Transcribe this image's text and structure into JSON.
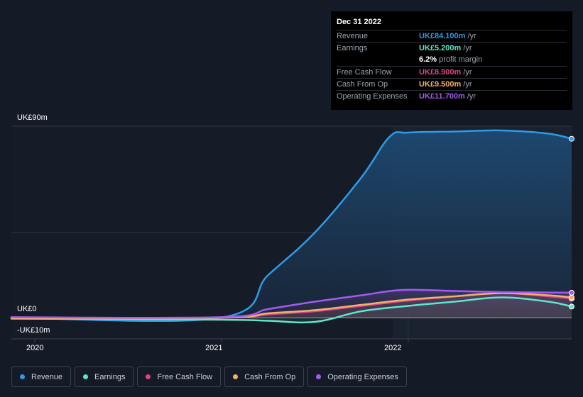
{
  "tooltip": {
    "date": "Dec 31 2022",
    "rows": [
      {
        "label": "Revenue",
        "value": "UK£84.100m",
        "unit": "/yr",
        "color": "#2d9be5"
      },
      {
        "label": "Earnings",
        "value": "UK£5.200m",
        "unit": "/yr",
        "color": "#5ee6c8"
      },
      {
        "label": "",
        "value": "6.2%",
        "unit": "profit margin",
        "color": "#ffffff"
      },
      {
        "label": "Free Cash Flow",
        "value": "UK£8.900m",
        "unit": "/yr",
        "color": "#d9478a"
      },
      {
        "label": "Cash From Op",
        "value": "UK£9.500m",
        "unit": "/yr",
        "color": "#f2b06a"
      },
      {
        "label": "Operating Expenses",
        "value": "UK£11.700m",
        "unit": "/yr",
        "color": "#a55af0"
      }
    ]
  },
  "legend": [
    {
      "label": "Revenue",
      "color": "#2d9be5"
    },
    {
      "label": "Earnings",
      "color": "#5ee6c8"
    },
    {
      "label": "Free Cash Flow",
      "color": "#d9478a"
    },
    {
      "label": "Cash From Op",
      "color": "#f2b06a"
    },
    {
      "label": "Operating Expenses",
      "color": "#a55af0"
    }
  ],
  "chart_data": {
    "type": "area",
    "y_tick_labels": [
      "UK£90m",
      "UK£0",
      "-UK£10m"
    ],
    "x_tick_labels": [
      "2020",
      "2021",
      "2022"
    ],
    "ylim": [
      -10,
      90
    ],
    "xlim": [
      2019.875,
      2022.875
    ],
    "series": [
      {
        "name": "Revenue",
        "color": "#2d9be5",
        "x": [
          2019.875,
          2021.0,
          2021.25,
          2021.5,
          2021.75,
          2021.9,
          2022.0,
          2022.25,
          2022.5,
          2022.75,
          2022.875
        ],
        "y": [
          0,
          0,
          20,
          40,
          66,
          85,
          87,
          87.5,
          88,
          86.5,
          84.1
        ]
      },
      {
        "name": "Earnings",
        "color": "#5ee6c8",
        "x": [
          2019.875,
          2021.0,
          2021.25,
          2021.5,
          2021.75,
          2022.0,
          2022.25,
          2022.5,
          2022.75,
          2022.875
        ],
        "y": [
          -0.5,
          -1,
          -1.5,
          -2,
          3,
          5.5,
          7.5,
          9.5,
          7.5,
          5.2
        ]
      },
      {
        "name": "Free Cash Flow",
        "color": "#d9478a",
        "x": [
          2019.875,
          2021.0,
          2021.25,
          2021.5,
          2021.75,
          2022.0,
          2022.25,
          2022.5,
          2022.75,
          2022.875
        ],
        "y": [
          0,
          0,
          1.5,
          3,
          5.5,
          8,
          10,
          11.5,
          10,
          8.9
        ]
      },
      {
        "name": "Cash From Op",
        "color": "#f2b06a",
        "x": [
          2019.875,
          2021.0,
          2021.25,
          2021.5,
          2021.75,
          2022.0,
          2022.25,
          2022.5,
          2022.75,
          2022.875
        ],
        "y": [
          -0.3,
          0,
          2,
          3.5,
          6,
          8.5,
          10,
          11.5,
          10.5,
          9.5
        ]
      },
      {
        "name": "Operating Expenses",
        "color": "#a55af0",
        "x": [
          2019.875,
          2021.0,
          2021.25,
          2021.5,
          2021.75,
          2021.97,
          2022.25,
          2022.5,
          2022.75,
          2022.875
        ],
        "y": [
          0.2,
          0.2,
          4,
          7.5,
          10.5,
          13,
          12.5,
          12,
          11.8,
          11.7
        ]
      }
    ]
  }
}
